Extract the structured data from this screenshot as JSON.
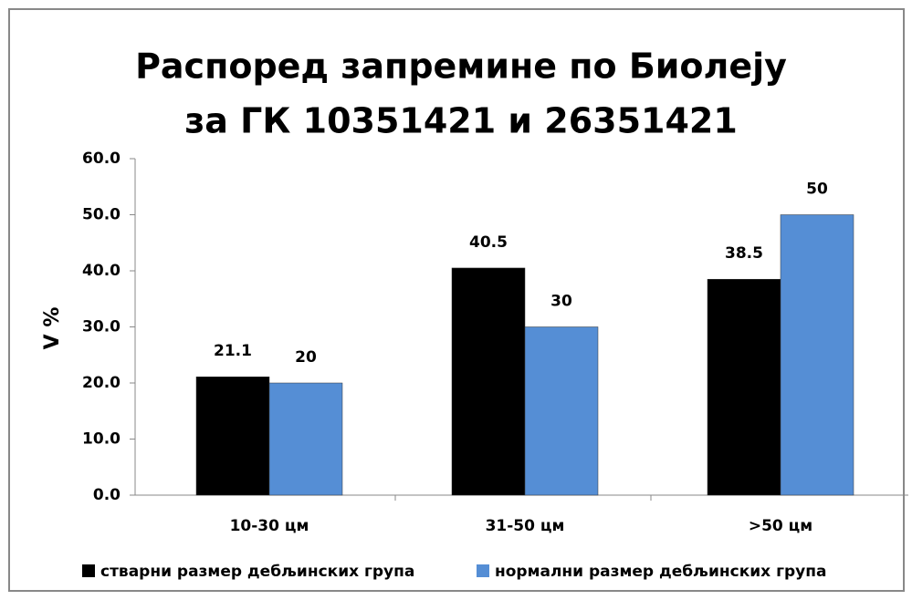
{
  "chart_data": {
    "type": "bar",
    "title": "Распоред запремине по Биолеју",
    "subtitle": "за ГК 10351421 и 26351421",
    "y_label": "V %",
    "categories": [
      "10-30 цм",
      "31-50 цм",
      ">50 цм"
    ],
    "series": [
      {
        "name": "стварни размер дебљинских група",
        "color": "#000000",
        "values": [
          21.1,
          40.5,
          38.5
        ]
      },
      {
        "name": "нормални размер дебљинских група",
        "color": "#558ed5",
        "values": [
          20,
          30,
          50
        ]
      }
    ],
    "ylim": [
      0,
      60
    ],
    "yticks": [
      {
        "value": 0,
        "label": "0.0"
      },
      {
        "value": 10,
        "label": "10.0"
      },
      {
        "value": 20,
        "label": "20.0"
      },
      {
        "value": 30,
        "label": "30.0"
      },
      {
        "value": 40,
        "label": "40.0"
      },
      {
        "value": 50,
        "label": "50.0"
      },
      {
        "value": 60,
        "label": "60.0"
      }
    ],
    "grid": false,
    "legend": "bottom"
  }
}
